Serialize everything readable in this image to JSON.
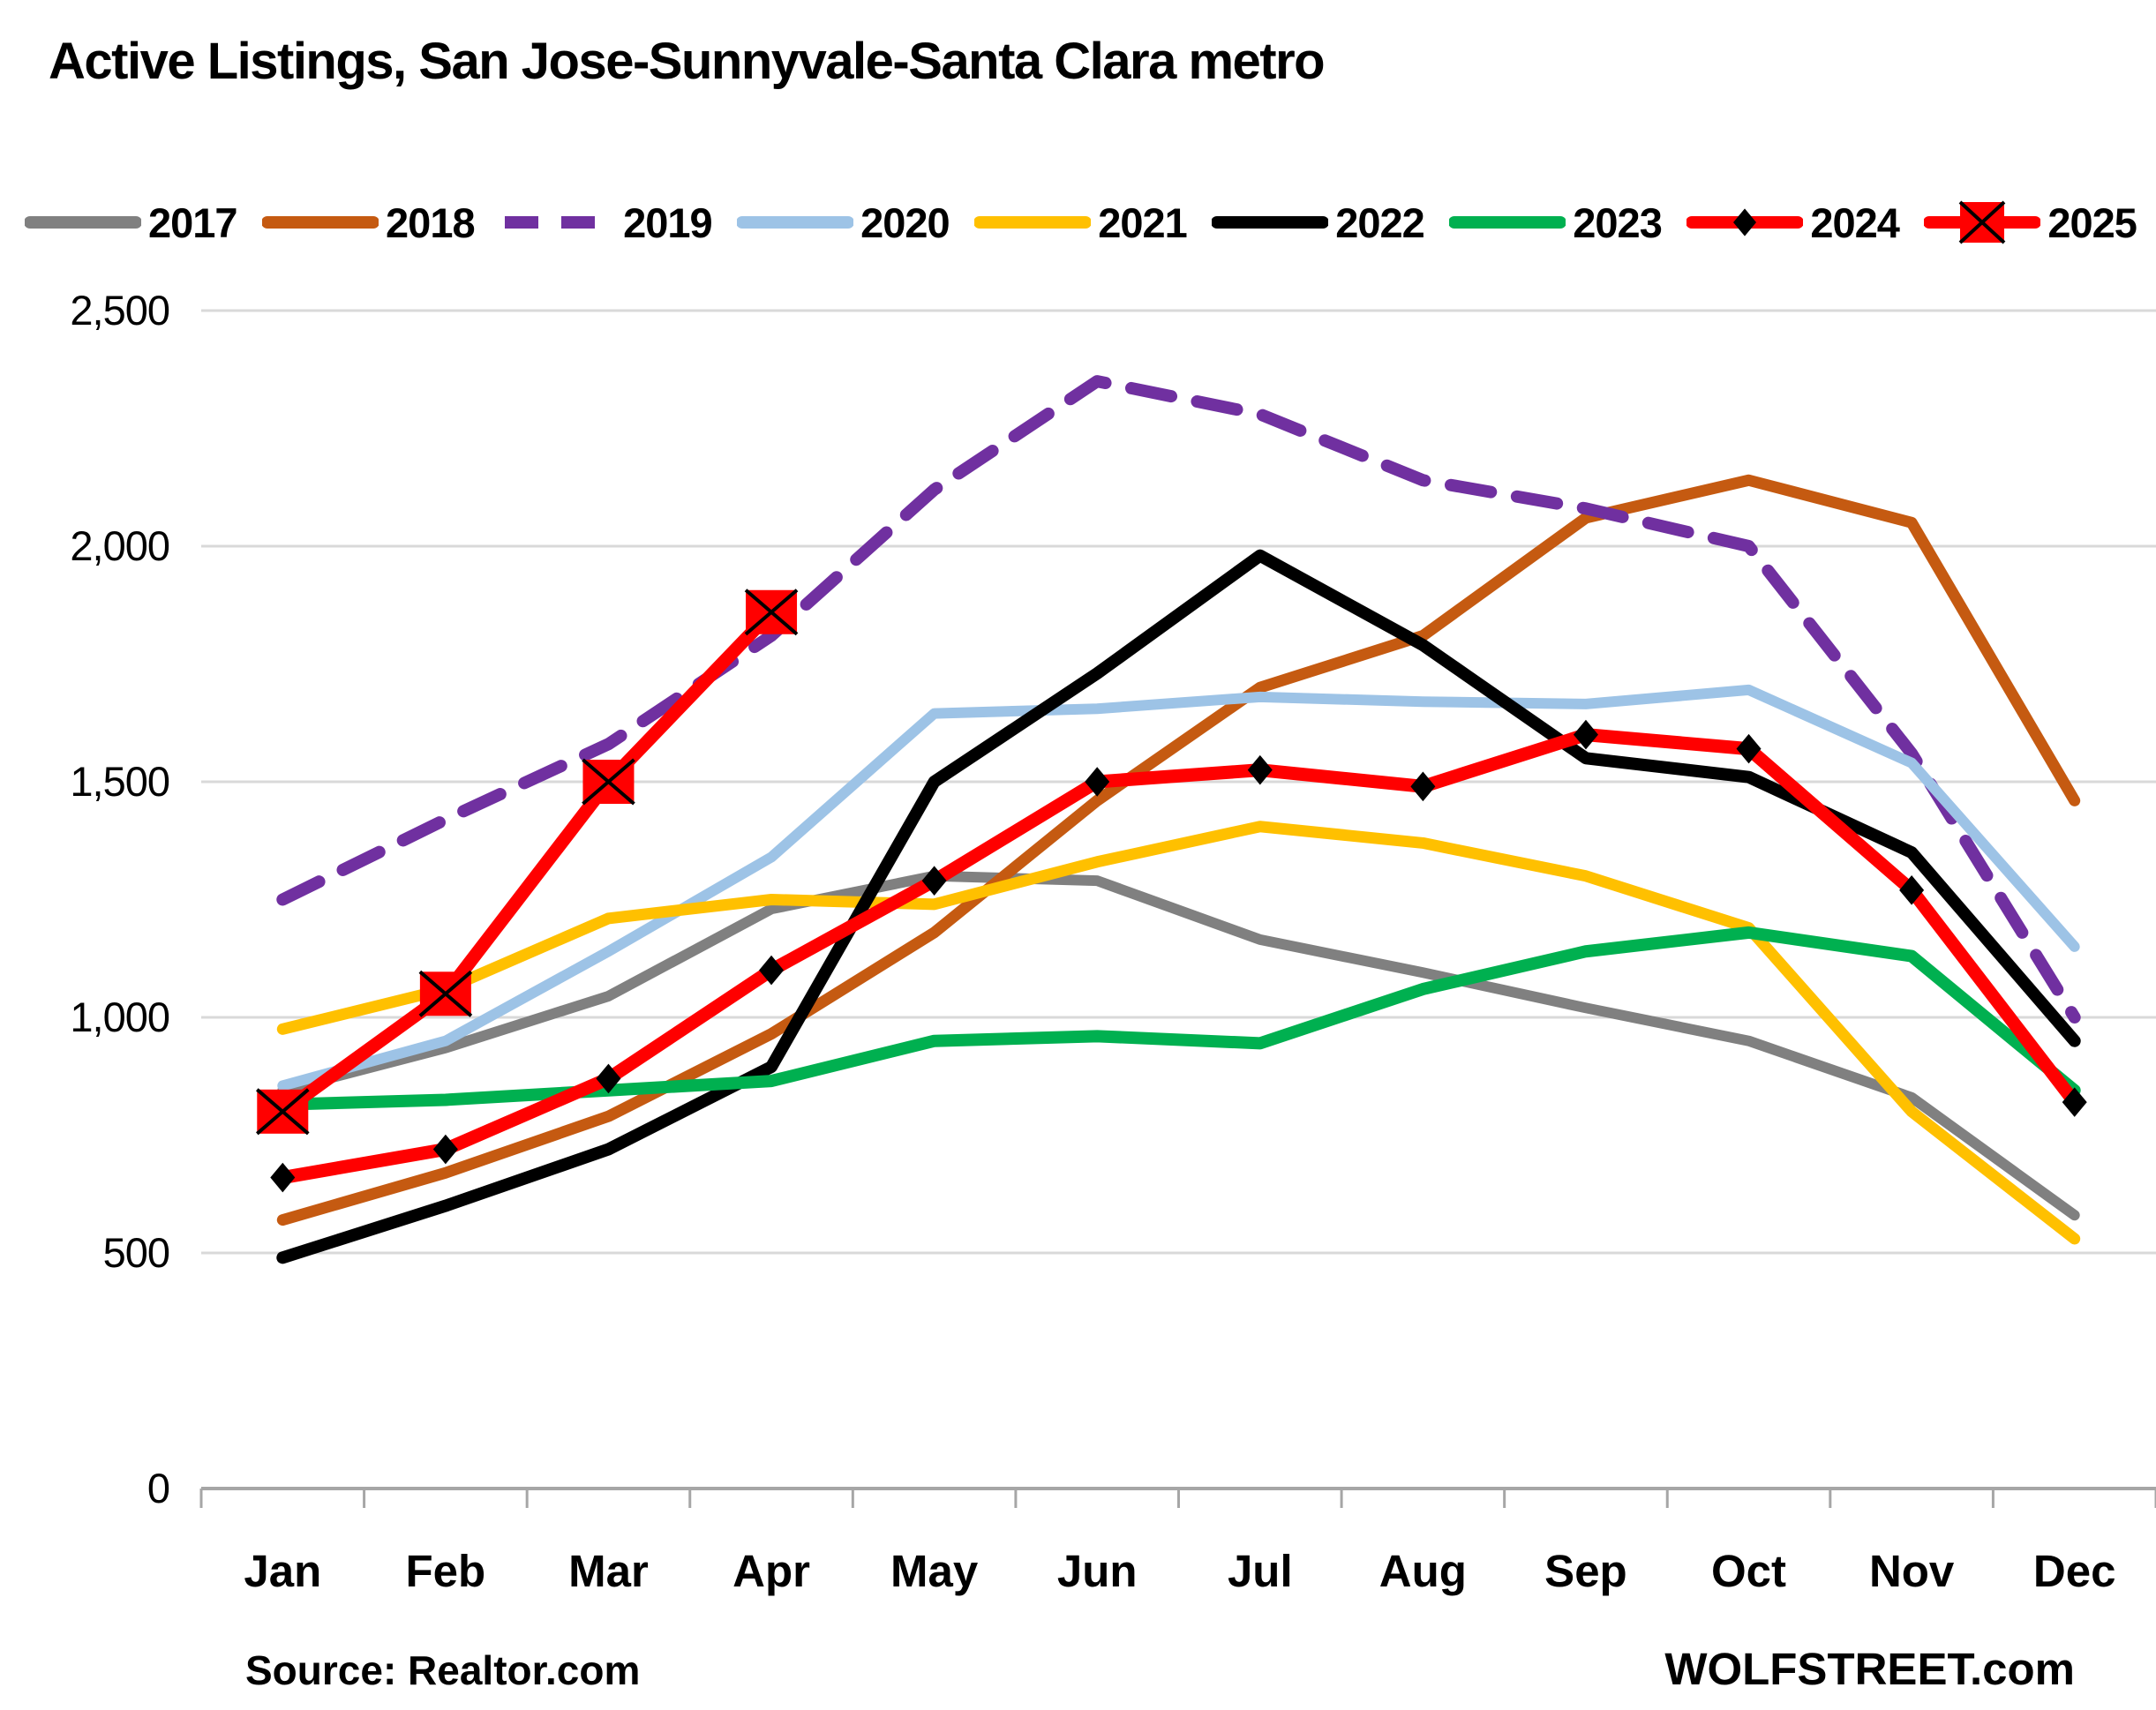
{
  "title": "Active Listings, San Jose-Sunnyvale-Santa Clara metro",
  "source_note": "Source: Realtor.com",
  "watermark": "WOLFSTREET.com",
  "colors": {
    "background": "#FFFFFF",
    "gridline": "#D9D9D9",
    "axis": "#A6A6A6",
    "text": "#000000"
  },
  "chart_data": {
    "type": "line",
    "title": "Active Listings, San Jose-Sunnyvale-Santa Clara metro",
    "xlabel": "",
    "ylabel": "",
    "x_categories": [
      "Jan",
      "Feb",
      "Mar",
      "Apr",
      "May",
      "Jun",
      "Jul",
      "Aug",
      "Sep",
      "Oct",
      "Nov",
      "Dec"
    ],
    "ylim": [
      0,
      2500
    ],
    "ytick_step": 500,
    "ytick_labels": [
      "0",
      "500",
      "1,000",
      "1,500",
      "2,000",
      "2,500"
    ],
    "grid": "horizontal",
    "legend_position": "top",
    "series": [
      {
        "name": "2017",
        "color": "#808080",
        "style": "solid",
        "marker": "none",
        "width": 12,
        "values": [
          845,
          935,
          1045,
          1230,
          1300,
          1290,
          1165,
          1095,
          1020,
          950,
          830,
          580
        ]
      },
      {
        "name": "2018",
        "color": "#C55A11",
        "style": "solid",
        "marker": "none",
        "width": 13,
        "values": [
          570,
          670,
          790,
          965,
          1180,
          1460,
          1700,
          1810,
          2060,
          2140,
          2050,
          1460
        ]
      },
      {
        "name": "2019",
        "color": "#7030A0",
        "style": "dashed",
        "marker": "none",
        "width": 14,
        "values": [
          1250,
          1420,
          1580,
          1810,
          2120,
          2350,
          2280,
          2140,
          2080,
          2000,
          1560,
          1000
        ]
      },
      {
        "name": "2020",
        "color": "#9DC3E6",
        "style": "solid",
        "marker": "none",
        "width": 12,
        "values": [
          855,
          950,
          1140,
          1340,
          1645,
          1655,
          1680,
          1670,
          1665,
          1695,
          1540,
          1150
        ]
      },
      {
        "name": "2021",
        "color": "#FFC000",
        "style": "solid",
        "marker": "none",
        "width": 13,
        "values": [
          975,
          1060,
          1210,
          1250,
          1240,
          1330,
          1405,
          1370,
          1300,
          1190,
          800,
          530
        ]
      },
      {
        "name": "2022",
        "color": "#000000",
        "style": "solid",
        "marker": "none",
        "width": 14,
        "values": [
          490,
          600,
          720,
          895,
          1500,
          1730,
          1980,
          1790,
          1550,
          1510,
          1350,
          950
        ]
      },
      {
        "name": "2023",
        "color": "#00B050",
        "style": "solid",
        "marker": "none",
        "width": 14,
        "values": [
          815,
          825,
          845,
          865,
          950,
          960,
          945,
          1060,
          1140,
          1180,
          1130,
          845
        ]
      },
      {
        "name": "2024",
        "color": "#FF0000",
        "style": "solid",
        "marker": "diamond",
        "marker_color": "#000000",
        "width": 15,
        "values": [
          660,
          720,
          870,
          1100,
          1290,
          1500,
          1525,
          1490,
          1600,
          1570,
          1270,
          820
        ]
      },
      {
        "name": "2025",
        "color": "#FF0000",
        "style": "solid",
        "marker": "x-square",
        "marker_color": "#FF0000",
        "width": 15,
        "values": [
          800,
          1050,
          1500,
          1860,
          null,
          null,
          null,
          null,
          null,
          null,
          null,
          null
        ]
      }
    ]
  }
}
